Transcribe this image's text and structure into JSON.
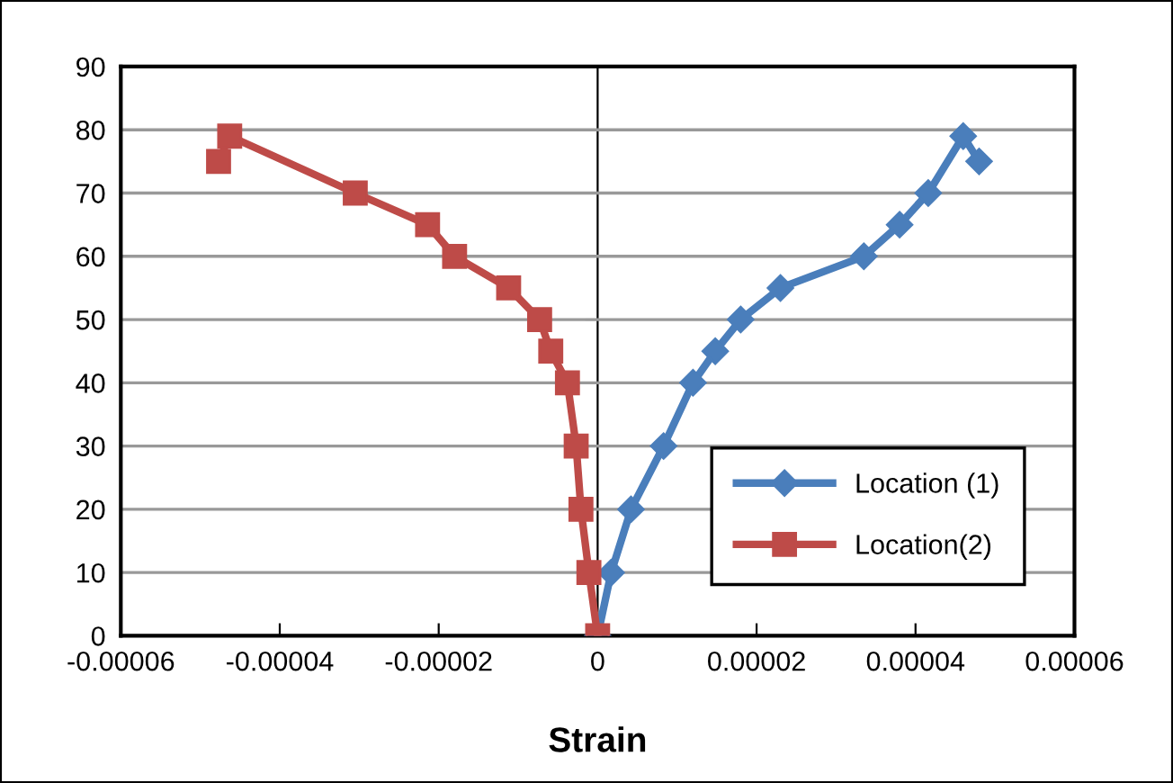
{
  "chart_data": {
    "type": "line",
    "xlabel": "Strain",
    "xlim": [
      -6e-05,
      6e-05
    ],
    "xticks": [
      {
        "value": -6e-05,
        "label": "-0.00006"
      },
      {
        "value": -4e-05,
        "label": "-0.00004"
      },
      {
        "value": -2e-05,
        "label": "-0.00002"
      },
      {
        "value": 0,
        "label": "0"
      },
      {
        "value": 2e-05,
        "label": "0.00002"
      },
      {
        "value": 4e-05,
        "label": "0.00004"
      },
      {
        "value": 6e-05,
        "label": "0.00006"
      }
    ],
    "ylim": [
      0,
      90
    ],
    "yticks": [
      0,
      10,
      20,
      30,
      40,
      50,
      60,
      70,
      80,
      90
    ],
    "grid": "y",
    "legend": "right",
    "series": [
      {
        "name": "Location (1)",
        "color": "#4a7ebb",
        "marker": "diamond",
        "x": [
          0,
          1.7e-06,
          4.2e-06,
          8.3e-06,
          1.2e-05,
          1.48e-05,
          1.8e-05,
          2.3e-05,
          3.35e-05,
          3.8e-05,
          4.16e-05,
          4.6e-05,
          4.8e-05
        ],
        "values": [
          0,
          10,
          20,
          30,
          40,
          45,
          50,
          55,
          60,
          65,
          70,
          79,
          75
        ]
      },
      {
        "name": "Location(2)",
        "color": "#be4b48",
        "marker": "square",
        "x": [
          0,
          -1.1e-06,
          -2.1e-06,
          -2.7e-06,
          -3.8e-06,
          -5.9e-06,
          -7.3e-06,
          -1.12e-05,
          -1.8e-05,
          -2.14e-05,
          -3.05e-05,
          -4.63e-05,
          -4.77e-05
        ],
        "values": [
          0,
          10,
          20,
          30,
          40,
          45,
          50,
          55,
          60,
          65,
          70,
          79,
          75
        ]
      }
    ]
  }
}
